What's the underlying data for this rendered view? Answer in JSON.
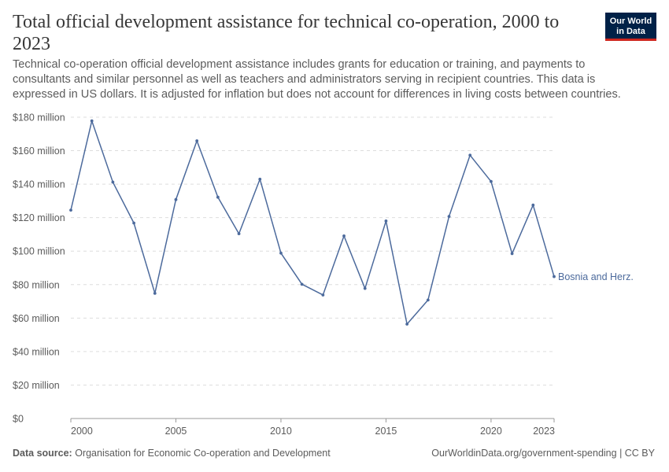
{
  "header": {
    "title": "Total official development assistance for technical co-operation, 2000 to 2023",
    "subtitle": "Technical co-operation official development assistance includes grants for education or training, and payments to consultants and similar personnel as well as teachers and administrators serving in recipient countries. This data is expressed in US dollars. It is adjusted for inflation but does not account for differences in living costs between countries.",
    "logo_line1": "Our World",
    "logo_line2": "in Data"
  },
  "footer": {
    "source_label": "Data source:",
    "source_text": "Organisation for Economic Co-operation and Development",
    "url_text": "OurWorldinData.org/government-spending | CC BY"
  },
  "colors": {
    "series": "#4c6a9c",
    "grid": "#dddddd",
    "axis": "#5b5b5b",
    "logo_bg": "#002147",
    "logo_accent": "#ce261e"
  },
  "chart_data": {
    "type": "line",
    "x": [
      2000,
      2001,
      2002,
      2003,
      2004,
      2005,
      2006,
      2007,
      2008,
      2009,
      2010,
      2011,
      2012,
      2013,
      2014,
      2015,
      2016,
      2017,
      2018,
      2019,
      2020,
      2021,
      2022,
      2023
    ],
    "series": [
      {
        "name": "Bosnia and Herz.",
        "values": [
          124.5,
          177.8,
          141.2,
          116.8,
          74.8,
          130.8,
          165.9,
          132.2,
          110.4,
          143.0,
          98.8,
          80.2,
          73.8,
          109.1,
          77.7,
          118.0,
          56.4,
          70.8,
          120.7,
          157.3,
          141.6,
          98.5,
          127.5,
          84.8
        ]
      }
    ],
    "y_ticks": [
      0,
      20,
      40,
      60,
      80,
      100,
      120,
      140,
      160,
      180
    ],
    "y_tick_labels": [
      "$0",
      "$20 million",
      "$40 million",
      "$60 million",
      "$80 million",
      "$100 million",
      "$120 million",
      "$140 million",
      "$160 million",
      "$180 million"
    ],
    "x_ticks": [
      2000,
      2005,
      2010,
      2015,
      2020,
      2023
    ],
    "x_tick_labels": [
      "2000",
      "2005",
      "2010",
      "2015",
      "2020",
      "2023"
    ],
    "xlim": [
      2000,
      2023
    ],
    "ylim": [
      0,
      180
    ],
    "grid": true,
    "grid_style": "dashed horizontal"
  }
}
